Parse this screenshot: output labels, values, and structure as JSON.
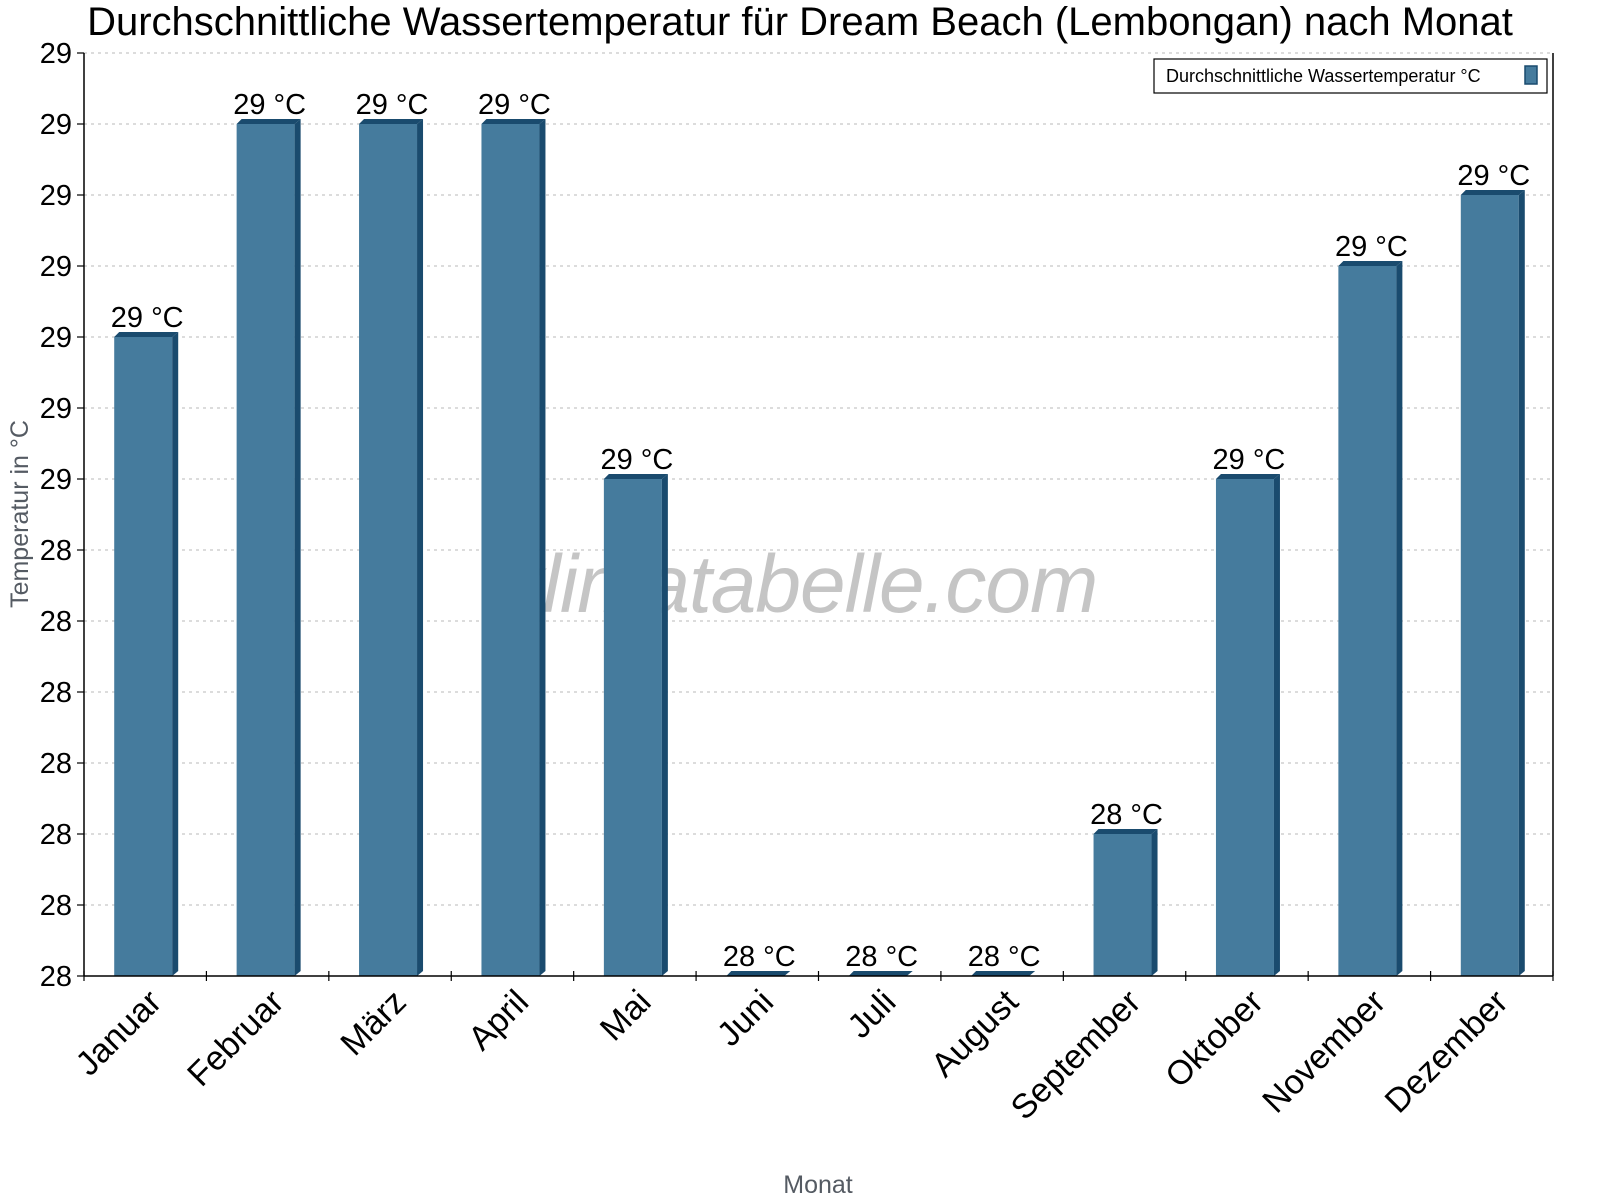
{
  "chart_data": {
    "type": "bar",
    "title": "Durchschnittliche Wassertemperatur für Dream Beach (Lembongan) nach Monat",
    "xlabel": "Monat",
    "ylabel": "Temperatur in °C",
    "categories": [
      "Januar",
      "Februar",
      "März",
      "April",
      "Mai",
      "Juni",
      "Juli",
      "August",
      "September",
      "Oktober",
      "November",
      "Dezember"
    ],
    "series": [
      {
        "name": "Durchschnittliche Wassertemperatur °C",
        "values": [
          28.7,
          29.0,
          29.0,
          29.0,
          28.5,
          27.8,
          27.8,
          27.8,
          28.0,
          28.5,
          28.8,
          28.9
        ],
        "data_labels": [
          "29 °C",
          "29 °C",
          "29 °C",
          "29 °C",
          "29 °C",
          "28 °C",
          "28 °C",
          "28 °C",
          "28 °C",
          "29 °C",
          "29 °C",
          "29 °C"
        ],
        "color": "#457b9d",
        "side_color": "#1a4b6e"
      }
    ],
    "ylim": [
      27.8,
      29.1
    ],
    "ytick_values": [
      27.8,
      27.9,
      28.0,
      28.1,
      28.2,
      28.3,
      28.4,
      28.5,
      28.6,
      28.7,
      28.8,
      28.9,
      29.0,
      29.1
    ],
    "ytick_labels": [
      "28",
      "28",
      "28",
      "28",
      "28",
      "28",
      "28",
      "29",
      "29",
      "29",
      "29",
      "29",
      "29",
      "29"
    ],
    "grid": true,
    "legend_position": "top-right",
    "watermark": "klimatabelle.com"
  }
}
